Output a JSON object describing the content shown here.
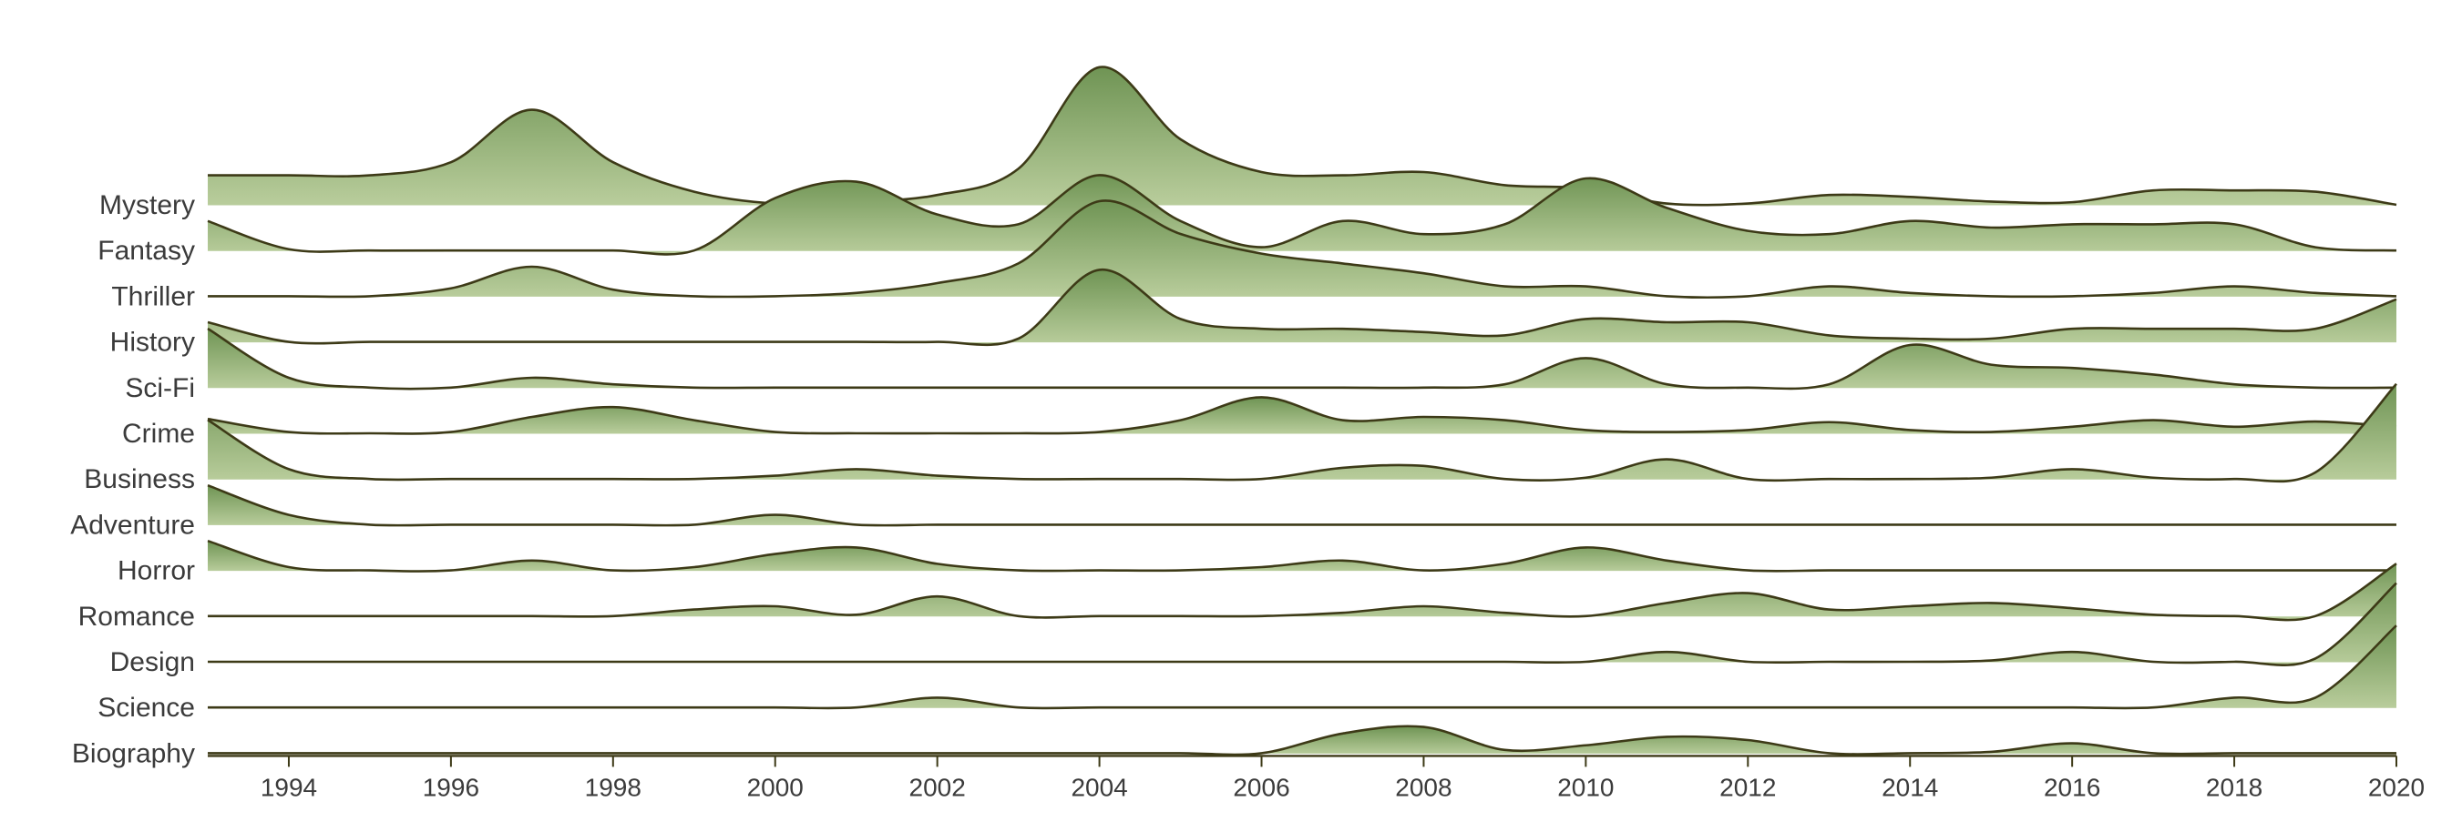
{
  "chart_data": {
    "type": "ridgeline",
    "x_range": [
      1993,
      2020
    ],
    "x_ticks": [
      1994,
      1996,
      1998,
      2000,
      2002,
      2004,
      2006,
      2008,
      2010,
      2012,
      2014,
      2016,
      2018,
      2020
    ],
    "x": [
      1993,
      1994,
      1995,
      1996,
      1997,
      1998,
      1999,
      2000,
      2001,
      2002,
      2003,
      2004,
      2005,
      2006,
      2007,
      2008,
      2009,
      2010,
      2011,
      2012,
      2013,
      2014,
      2015,
      2016,
      2017,
      2018,
      2019,
      2020
    ],
    "colors": {
      "top": "#6f9454",
      "bottom": "#b9cd9c",
      "line": "#3d3a17"
    },
    "series": [
      {
        "name": "Mystery",
        "values": [
          0.45,
          0.45,
          0.45,
          0.65,
          1.45,
          0.65,
          0.2,
          0.02,
          0.05,
          0.15,
          0.55,
          2.1,
          1.0,
          0.5,
          0.45,
          0.5,
          0.3,
          0.25,
          0.02,
          0.02,
          0.15,
          0.12,
          0.05,
          0.04,
          0.22,
          0.22,
          0.2,
          0.0
        ]
      },
      {
        "name": "Fantasy",
        "values": [
          0.45,
          0.02,
          0.0,
          0.0,
          0.0,
          0.0,
          0.0,
          0.8,
          1.05,
          0.55,
          0.4,
          1.15,
          0.45,
          0.05,
          0.45,
          0.25,
          0.4,
          1.1,
          0.65,
          0.3,
          0.25,
          0.45,
          0.35,
          0.4,
          0.4,
          0.4,
          0.05,
          0.0
        ]
      },
      {
        "name": "Thriller",
        "values": [
          0.0,
          0.0,
          0.0,
          0.12,
          0.45,
          0.1,
          0.0,
          0.0,
          0.05,
          0.2,
          0.5,
          1.45,
          0.95,
          0.65,
          0.5,
          0.35,
          0.15,
          0.15,
          0.0,
          0.0,
          0.15,
          0.05,
          0.0,
          0.0,
          0.05,
          0.15,
          0.05,
          0.0
        ]
      },
      {
        "name": "History",
        "values": [
          0.3,
          0.0,
          0.0,
          0.0,
          0.0,
          0.0,
          0.0,
          0.0,
          0.0,
          0.0,
          0.05,
          1.1,
          0.35,
          0.2,
          0.2,
          0.15,
          0.1,
          0.35,
          0.3,
          0.3,
          0.1,
          0.05,
          0.05,
          0.2,
          0.2,
          0.2,
          0.2,
          0.65
        ]
      },
      {
        "name": "Sci-Fi",
        "values": [
          0.9,
          0.15,
          0.0,
          0.0,
          0.15,
          0.05,
          0.0,
          0.0,
          0.0,
          0.0,
          0.0,
          0.0,
          0.0,
          0.0,
          0.0,
          0.0,
          0.05,
          0.45,
          0.05,
          0.0,
          0.05,
          0.65,
          0.35,
          0.3,
          0.2,
          0.05,
          0.0,
          0.0
        ]
      },
      {
        "name": "Crime",
        "values": [
          0.22,
          0.02,
          0.0,
          0.02,
          0.25,
          0.4,
          0.2,
          0.02,
          0.0,
          0.0,
          0.0,
          0.02,
          0.2,
          0.55,
          0.2,
          0.25,
          0.2,
          0.05,
          0.02,
          0.05,
          0.17,
          0.05,
          0.02,
          0.1,
          0.2,
          0.1,
          0.18,
          0.1
        ]
      },
      {
        "name": "Business",
        "values": [
          0.9,
          0.15,
          0.0,
          0.0,
          0.0,
          0.0,
          0.0,
          0.05,
          0.15,
          0.05,
          0.0,
          0.0,
          0.0,
          0.0,
          0.17,
          0.2,
          0.0,
          0.02,
          0.3,
          0.0,
          0.0,
          0.0,
          0.02,
          0.15,
          0.02,
          0.0,
          0.1,
          1.45
        ]
      },
      {
        "name": "Adventure",
        "values": [
          0.6,
          0.15,
          0.0,
          0.0,
          0.0,
          0.0,
          0.0,
          0.15,
          0.0,
          0.0,
          0.0,
          0.0,
          0.0,
          0.0,
          0.0,
          0.0,
          0.0,
          0.0,
          0.0,
          0.0,
          0.0,
          0.0,
          0.0,
          0.0,
          0.0,
          0.0,
          0.0,
          0.0
        ]
      },
      {
        "name": "Horror",
        "values": [
          0.45,
          0.05,
          0.0,
          0.0,
          0.15,
          0.0,
          0.05,
          0.25,
          0.35,
          0.1,
          0.0,
          0.0,
          0.0,
          0.05,
          0.15,
          0.0,
          0.1,
          0.35,
          0.15,
          0.0,
          0.0,
          0.0,
          0.0,
          0.0,
          0.0,
          0.0,
          0.0,
          0.0
        ]
      },
      {
        "name": "Romance",
        "values": [
          0.0,
          0.0,
          0.0,
          0.0,
          0.0,
          0.0,
          0.1,
          0.15,
          0.02,
          0.3,
          0.0,
          0.0,
          0.0,
          0.0,
          0.05,
          0.15,
          0.05,
          0.0,
          0.2,
          0.35,
          0.1,
          0.15,
          0.2,
          0.12,
          0.02,
          0.0,
          0.0,
          0.8
        ]
      },
      {
        "name": "Design",
        "values": [
          0.0,
          0.0,
          0.0,
          0.0,
          0.0,
          0.0,
          0.0,
          0.0,
          0.0,
          0.0,
          0.0,
          0.0,
          0.0,
          0.0,
          0.0,
          0.0,
          0.0,
          0.0,
          0.15,
          0.0,
          0.0,
          0.0,
          0.02,
          0.15,
          0.0,
          0.0,
          0.05,
          1.2
        ]
      },
      {
        "name": "Science",
        "values": [
          0.0,
          0.0,
          0.0,
          0.0,
          0.0,
          0.0,
          0.0,
          0.0,
          0.0,
          0.15,
          0.0,
          0.0,
          0.0,
          0.0,
          0.0,
          0.0,
          0.0,
          0.0,
          0.0,
          0.0,
          0.0,
          0.0,
          0.0,
          0.0,
          0.0,
          0.15,
          0.15,
          1.25
        ]
      },
      {
        "name": "Biography",
        "values": [
          0.0,
          0.0,
          0.0,
          0.0,
          0.0,
          0.0,
          0.0,
          0.0,
          0.0,
          0.0,
          0.0,
          0.0,
          0.0,
          0.0,
          0.3,
          0.4,
          0.05,
          0.12,
          0.25,
          0.2,
          0.0,
          0.0,
          0.02,
          0.15,
          0.0,
          0.0,
          0.0,
          0.0
        ]
      }
    ]
  }
}
